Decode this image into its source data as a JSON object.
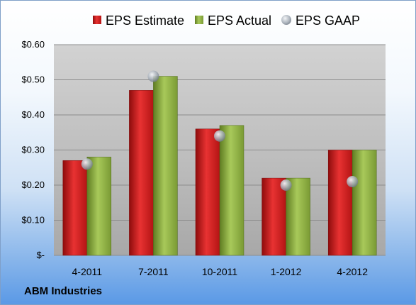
{
  "footer": {
    "company": "ABM Industries"
  },
  "legend": {
    "estimate": "EPS Estimate",
    "actual": "EPS Actual",
    "gaap": "EPS GAAP"
  },
  "colors": {
    "estimate": "#cc1f1f",
    "actual": "#8dae43",
    "gaap": "#aab2bd"
  },
  "chart_data": {
    "type": "bar",
    "categories": [
      "4-2011",
      "7-2011",
      "10-2011",
      "1-2012",
      "4-2012"
    ],
    "series": [
      {
        "name": "EPS Estimate",
        "type": "bar",
        "values": [
          0.27,
          0.47,
          0.36,
          0.22,
          0.3
        ]
      },
      {
        "name": "EPS Actual",
        "type": "bar",
        "values": [
          0.28,
          0.51,
          0.37,
          0.22,
          0.3
        ]
      },
      {
        "name": "EPS GAAP",
        "type": "scatter",
        "values": [
          0.26,
          0.51,
          0.34,
          0.2,
          0.21
        ]
      }
    ],
    "ylim": [
      0,
      0.6
    ],
    "yticks": [
      {
        "value": 0,
        "label": "$-"
      },
      {
        "value": 0.1,
        "label": "$0.10"
      },
      {
        "value": 0.2,
        "label": "$0.20"
      },
      {
        "value": 0.3,
        "label": "$0.30"
      },
      {
        "value": 0.4,
        "label": "$0.40"
      },
      {
        "value": 0.5,
        "label": "$0.50"
      },
      {
        "value": 0.6,
        "label": "$0.60"
      }
    ],
    "grid": true,
    "legend_position": "top"
  }
}
